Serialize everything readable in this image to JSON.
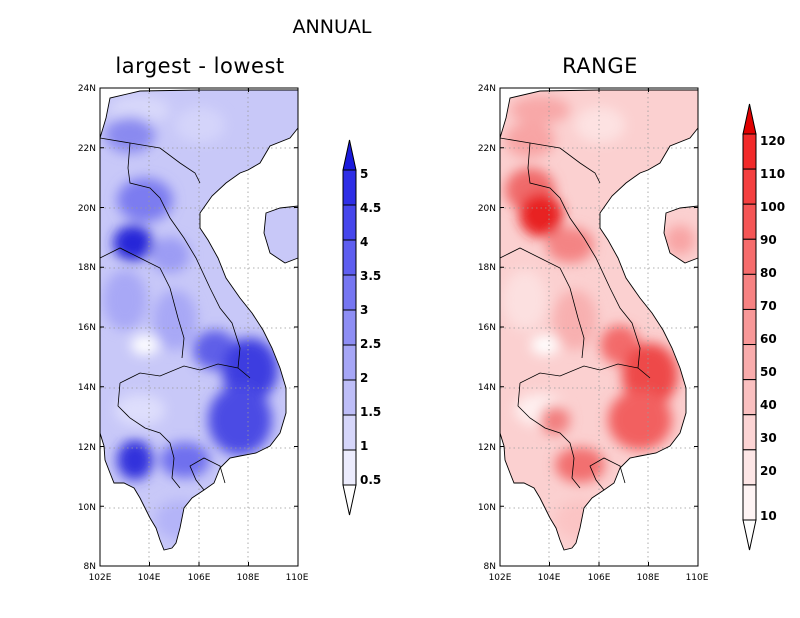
{
  "title": "ANNUAL",
  "panels": [
    {
      "id": "left",
      "title": "largest - lowest",
      "lat_ticks": [
        "24N",
        "22N",
        "20N",
        "18N",
        "16N",
        "14N",
        "12N",
        "10N",
        "8N"
      ],
      "lon_ticks": [
        "102E",
        "104E",
        "106E",
        "108E",
        "110E"
      ],
      "colorbar": {
        "labels": [
          "5",
          "4.5",
          "4",
          "3.5",
          "3",
          "2.5",
          "2",
          "1.5",
          "1",
          "0.5"
        ],
        "colors": [
          "#1a1adc",
          "#2e2ee6",
          "#4646ec",
          "#5e5ef0",
          "#7676f2",
          "#8e8ef4",
          "#a6a6f6",
          "#bebef8",
          "#d6d6fa",
          "#ececfd",
          "#ffffff"
        ],
        "arrow_top": "#1a1adc",
        "arrow_bottom": "#ffffff"
      }
    },
    {
      "id": "right",
      "title": "RANGE",
      "lat_ticks": [
        "24N",
        "22N",
        "20N",
        "18N",
        "16N",
        "14N",
        "12N",
        "10N",
        "8N"
      ],
      "lon_ticks": [
        "102E",
        "104E",
        "106E",
        "108E",
        "110E"
      ],
      "colorbar": {
        "labels": [
          "120",
          "110",
          "100",
          "90",
          "80",
          "70",
          "60",
          "50",
          "40",
          "30",
          "20",
          "10"
        ],
        "colors": [
          "#f01010",
          "#f22a2a",
          "#f44040",
          "#f55656",
          "#f66c6c",
          "#f78282",
          "#f89898",
          "#f9acac",
          "#fac0c0",
          "#fcd4d4",
          "#fde6e6",
          "#fef4f4",
          "#ffffff"
        ],
        "arrow_top": "#e00000",
        "arrow_bottom": "#ffffff"
      }
    }
  ]
}
